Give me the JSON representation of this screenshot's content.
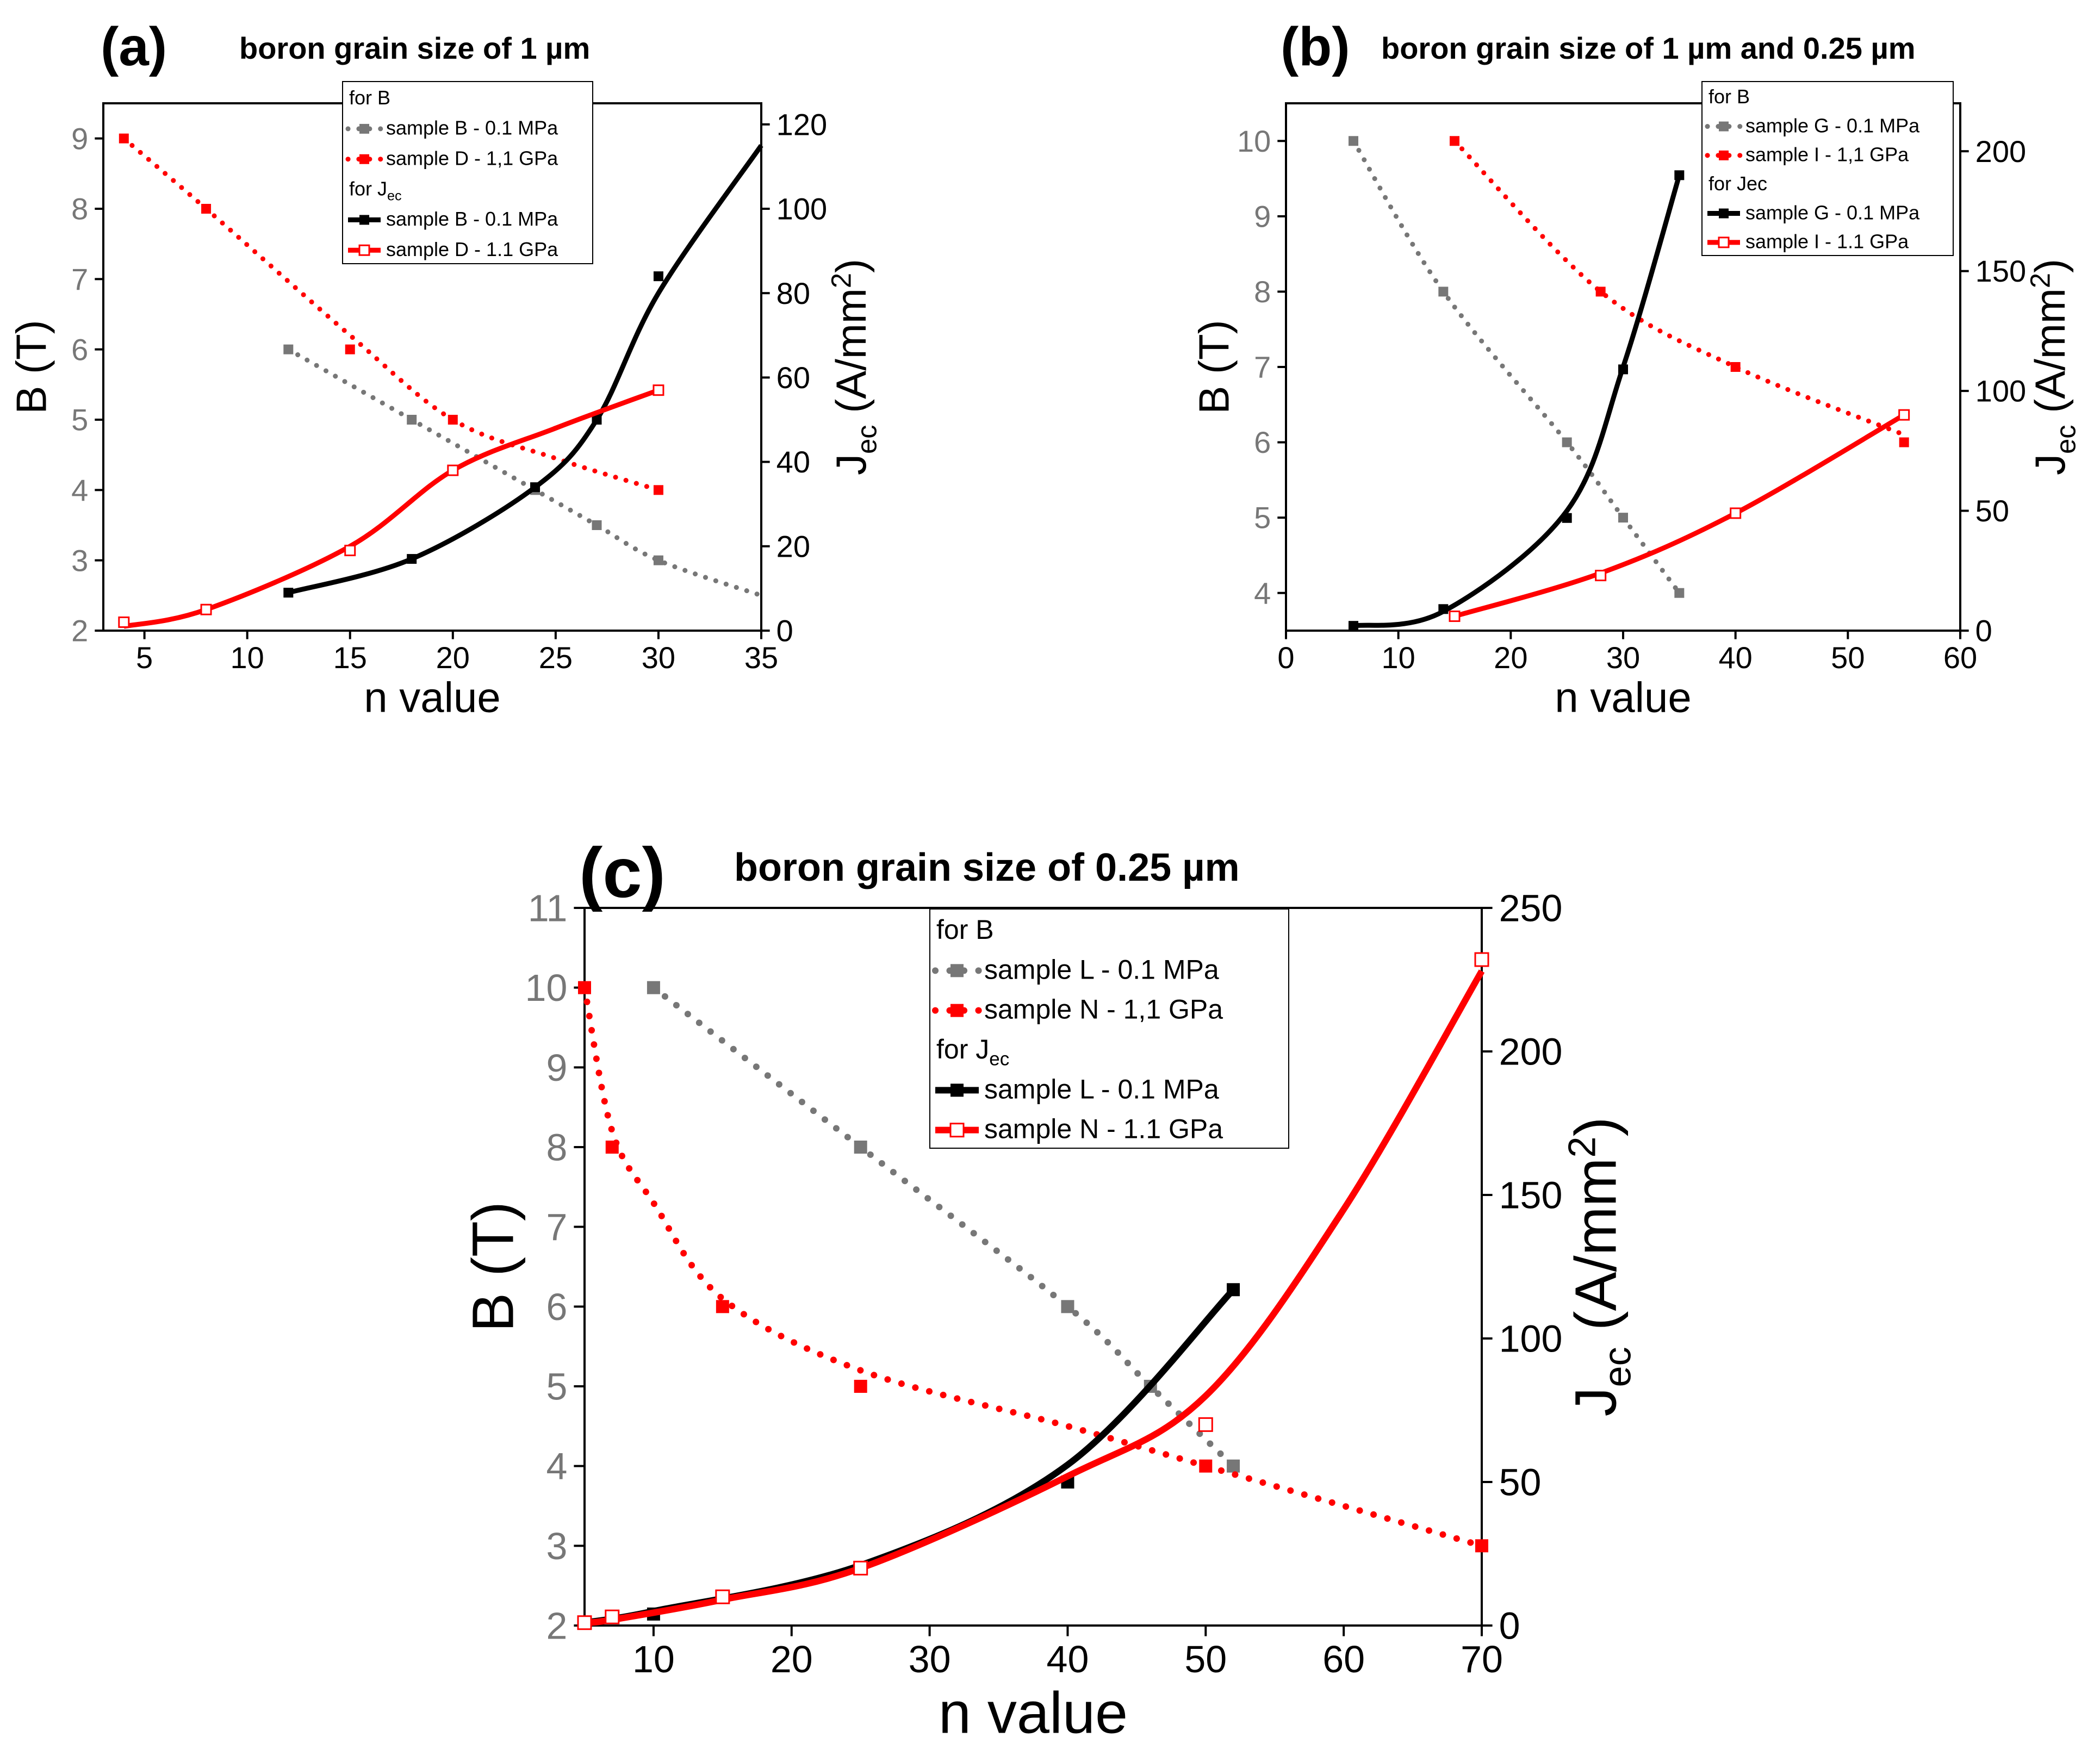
{
  "colors": {
    "gray": "#777777",
    "red": "#ff0000",
    "black": "#000000"
  },
  "chart_data": [
    {
      "id": "a",
      "type": "line",
      "panel_label": "(a)",
      "title": "boron grain size of 1 µm",
      "xlabel": "n value",
      "ylabel_left": "B (T)",
      "ylabel_right_main": "J",
      "ylabel_right_sub": "ec",
      "ylabel_right_tail": " (A/mm",
      "ylabel_right_sup": "2",
      "ylabel_right_close": ")",
      "xlim": [
        3,
        35
      ],
      "ylim_left": [
        2,
        9.5
      ],
      "ylim_right": [
        0,
        125
      ],
      "xticks": [
        5,
        10,
        15,
        20,
        25,
        30,
        35
      ],
      "yticks_left": [
        2,
        3,
        4,
        5,
        6,
        7,
        8,
        9
      ],
      "yticks_right": [
        0,
        20,
        40,
        60,
        80,
        100,
        120
      ],
      "legend": {
        "group_b": "for B",
        "group_j_main": "for J",
        "group_j_sub": "ec",
        "entries_b": [
          "sample B - 0.1 MPa",
          "sample D - 1,1 GPa"
        ],
        "entries_j": [
          "sample B - 0.1 MPa",
          "sample D - 1.1 GPa"
        ]
      },
      "series": [
        {
          "name": "sample B - 0.1 MPa",
          "axis": "left",
          "color": "gray",
          "style": "dotted",
          "marker": "square-filled",
          "x": [
            12,
            18,
            24,
            27,
            30
          ],
          "values": [
            6,
            5,
            4,
            3.5,
            3
          ],
          "fit": [
            [
              12,
              6
            ],
            [
              18,
              5
            ],
            [
              24,
              4
            ],
            [
              27,
              3.5
            ],
            [
              30,
              3
            ],
            [
              35,
              2.5
            ]
          ]
        },
        {
          "name": "sample D - 1,1 GPa",
          "axis": "left",
          "color": "red",
          "style": "dotted",
          "marker": "square-filled",
          "x": [
            4,
            8,
            15,
            20,
            30
          ],
          "values": [
            9,
            8,
            6,
            5,
            4
          ],
          "fit": [
            [
              4,
              9
            ],
            [
              8,
              8
            ],
            [
              15,
              6.2
            ],
            [
              20,
              5
            ],
            [
              25,
              4.45
            ],
            [
              30,
              4
            ]
          ]
        },
        {
          "name": "sample B - 0.1 MPa",
          "axis": "right",
          "color": "black",
          "style": "solid",
          "marker": "square-filled",
          "x": [
            12,
            18,
            24,
            27,
            30
          ],
          "values": [
            9,
            17,
            34,
            50,
            84
          ],
          "fit": [
            [
              12,
              9
            ],
            [
              18,
              17
            ],
            [
              24,
              34
            ],
            [
              27,
              50
            ],
            [
              30,
              80
            ],
            [
              35,
              115
            ]
          ]
        },
        {
          "name": "sample D - 1.1 GPa",
          "axis": "right",
          "color": "red",
          "style": "solid",
          "marker": "square-open",
          "x": [
            4,
            8,
            15,
            20,
            30
          ],
          "values": [
            2,
            5,
            19,
            38,
            57
          ],
          "fit": [
            [
              4,
              1
            ],
            [
              8,
              5
            ],
            [
              15,
              20
            ],
            [
              20,
              38
            ],
            [
              25,
              48
            ],
            [
              30,
              57
            ]
          ]
        }
      ]
    },
    {
      "id": "b",
      "type": "line",
      "panel_label": "(b)",
      "title": "boron grain size of 1 µm and 0.25 µm",
      "xlabel": "n value",
      "ylabel_left": "B (T)",
      "ylabel_right_main": "J",
      "ylabel_right_sub": "ec",
      "ylabel_right_tail": " (A/mm",
      "ylabel_right_sup": "2",
      "ylabel_right_close": ")",
      "xlim": [
        0,
        60
      ],
      "ylim_left": [
        3.5,
        10.5
      ],
      "ylim_right": [
        0,
        220
      ],
      "xticks": [
        0,
        10,
        20,
        30,
        40,
        50,
        60
      ],
      "yticks_left": [
        4,
        5,
        6,
        7,
        8,
        9,
        10
      ],
      "yticks_right": [
        0,
        50,
        100,
        150,
        200
      ],
      "legend": {
        "group_b": "for B",
        "group_j_main": "for Jec",
        "group_j_sub": "",
        "entries_b": [
          "sample G - 0.1 MPa",
          "sample I - 1,1 GPa"
        ],
        "entries_j": [
          "sample G - 0.1 MPa",
          "sample I - 1.1 GPa"
        ]
      },
      "series": [
        {
          "name": "sample G - 0.1 MPa",
          "axis": "left",
          "color": "gray",
          "style": "dotted",
          "marker": "square-filled",
          "x": [
            6,
            14,
            25,
            30,
            35
          ],
          "values": [
            10,
            8,
            6,
            5,
            4
          ],
          "fit": [
            [
              6,
              10
            ],
            [
              14,
              8
            ],
            [
              25,
              6
            ],
            [
              30,
              5
            ],
            [
              35,
              4
            ]
          ]
        },
        {
          "name": "sample I - 1,1 GPa",
          "axis": "left",
          "color": "red",
          "style": "dotted",
          "marker": "square-filled",
          "x": [
            15,
            28,
            40,
            55
          ],
          "values": [
            10,
            8,
            7,
            6
          ],
          "fit": [
            [
              15,
              10
            ],
            [
              28,
              8
            ],
            [
              40,
              7
            ],
            [
              55,
              6.1
            ]
          ]
        },
        {
          "name": "sample G - 0.1 MPa",
          "axis": "right",
          "color": "black",
          "style": "solid",
          "marker": "square-filled",
          "x": [
            6,
            14,
            25,
            30,
            35
          ],
          "values": [
            2,
            9,
            47,
            109,
            190
          ],
          "fit": [
            [
              6,
              2
            ],
            [
              14,
              8
            ],
            [
              25,
              50
            ],
            [
              30,
              110
            ],
            [
              35,
              190
            ]
          ]
        },
        {
          "name": "sample I - 1.1 GPa",
          "axis": "right",
          "color": "red",
          "style": "solid",
          "marker": "square-open",
          "x": [
            15,
            28,
            40,
            55
          ],
          "values": [
            6,
            23,
            49,
            90
          ],
          "fit": [
            [
              15,
              6
            ],
            [
              28,
              24
            ],
            [
              40,
              49
            ],
            [
              55,
              90
            ]
          ]
        }
      ]
    },
    {
      "id": "c",
      "type": "line",
      "panel_label": "(c)",
      "title": "boron grain size of 0.25 µm",
      "xlabel": "n value",
      "ylabel_left": "B (T)",
      "ylabel_right_main": "J",
      "ylabel_right_sub": "ec",
      "ylabel_right_tail": " (A/mm",
      "ylabel_right_sup": "2",
      "ylabel_right_close": ")",
      "xlim": [
        5,
        70
      ],
      "ylim_left": [
        2,
        11
      ],
      "ylim_right": [
        0,
        250
      ],
      "xticks": [
        10,
        20,
        30,
        40,
        50,
        60,
        70
      ],
      "yticks_left": [
        2,
        3,
        4,
        5,
        6,
        7,
        8,
        9,
        10,
        11
      ],
      "yticks_right": [
        0,
        50,
        100,
        150,
        200,
        250
      ],
      "legend": {
        "group_b": "for B",
        "group_j_main": "for J",
        "group_j_sub": "ec",
        "entries_b": [
          "sample L - 0.1 MPa",
          "sample N - 1,1 GPa"
        ],
        "entries_j": [
          "sample L - 0.1 MPa",
          "sample N - 1.1 GPa"
        ]
      },
      "series": [
        {
          "name": "sample L - 0.1 MPa",
          "axis": "left",
          "color": "gray",
          "style": "dotted",
          "marker": "square-filled",
          "x": [
            10,
            25,
            40,
            46,
            52
          ],
          "values": [
            10,
            8,
            6,
            5,
            4
          ],
          "fit": [
            [
              10,
              10
            ],
            [
              25,
              8
            ],
            [
              40,
              6
            ],
            [
              46,
              5
            ],
            [
              52,
              4
            ]
          ]
        },
        {
          "name": "sample N - 1,1 GPa",
          "axis": "left",
          "color": "red",
          "style": "dotted",
          "marker": "square-filled",
          "x": [
            5,
            7,
            15,
            25,
            50,
            70
          ],
          "values": [
            10,
            8,
            6,
            5,
            4,
            3
          ],
          "fit": [
            [
              5,
              10
            ],
            [
              7,
              8.2
            ],
            [
              10,
              7.3
            ],
            [
              15,
              6.1
            ],
            [
              25,
              5.2
            ],
            [
              40,
              4.5
            ],
            [
              50,
              4
            ],
            [
              60,
              3.5
            ],
            [
              70,
              3
            ]
          ]
        },
        {
          "name": "sample L - 0.1 MPa",
          "axis": "right",
          "color": "black",
          "style": "solid",
          "marker": "square-filled",
          "x": [
            10,
            25,
            40,
            52
          ],
          "values": [
            4,
            20,
            50,
            117
          ],
          "fit": [
            [
              5,
              1
            ],
            [
              10,
              5
            ],
            [
              25,
              21
            ],
            [
              40,
              56
            ],
            [
              52,
              117
            ]
          ]
        },
        {
          "name": "sample N - 1.1 GPa",
          "axis": "right",
          "color": "red",
          "style": "solid",
          "marker": "square-open",
          "x": [
            5,
            7,
            15,
            25,
            50,
            70
          ],
          "values": [
            1,
            3,
            10,
            20,
            70,
            232
          ],
          "fit": [
            [
              5,
              1
            ],
            [
              7,
              2
            ],
            [
              15,
              9
            ],
            [
              25,
              20
            ],
            [
              40,
              52
            ],
            [
              50,
              80
            ],
            [
              60,
              145
            ],
            [
              70,
              228
            ]
          ]
        }
      ]
    }
  ]
}
